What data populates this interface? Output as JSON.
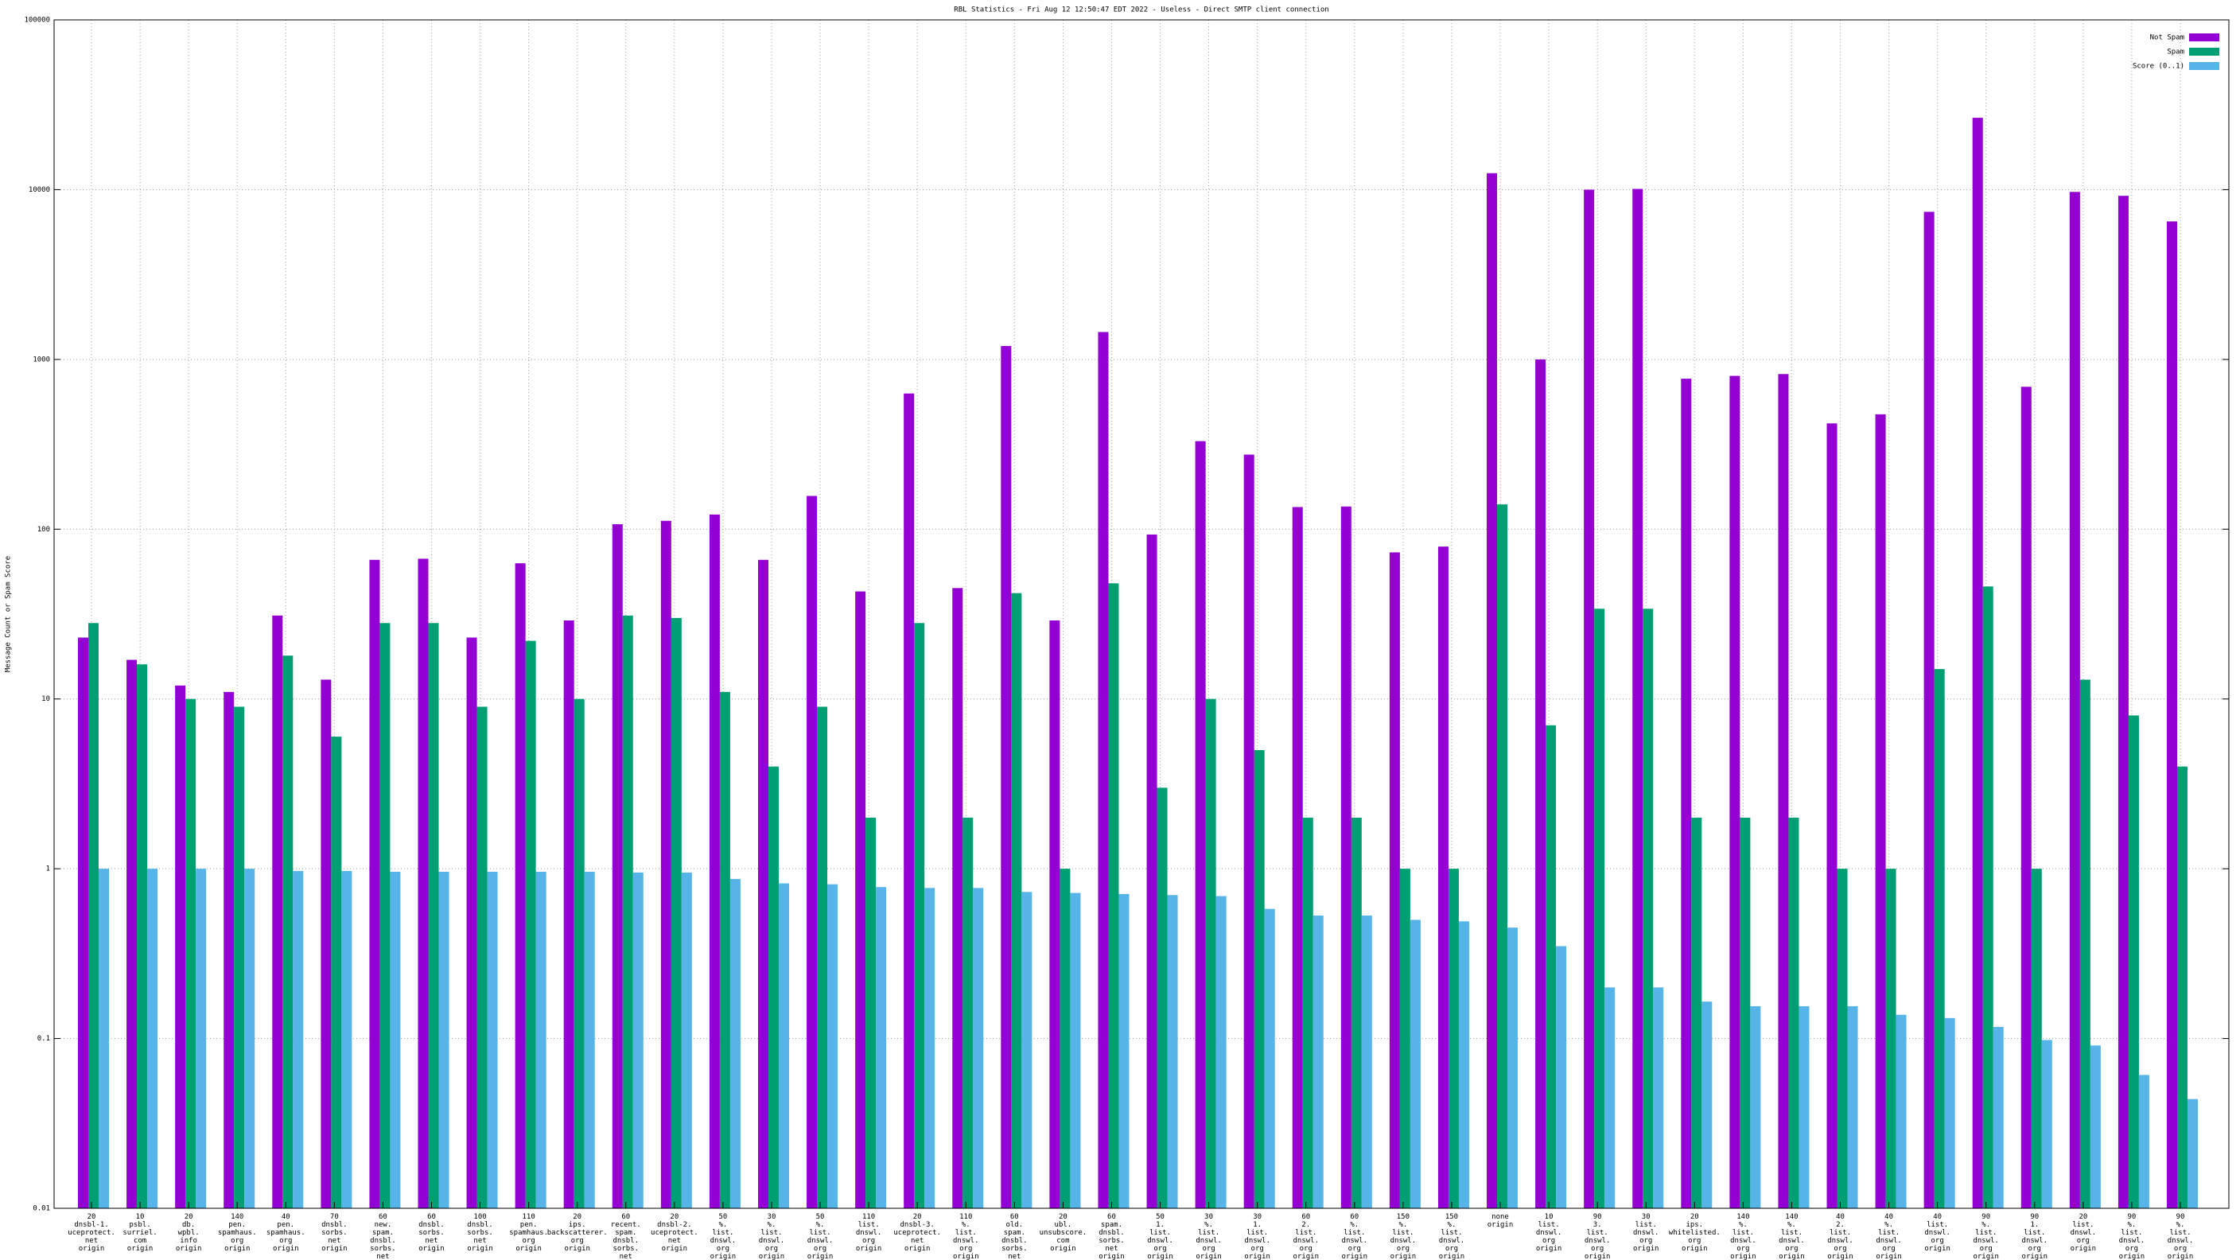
{
  "chart_data": {
    "type": "bar",
    "title": "RBL Statistics - Fri Aug 12 12:50:47 EDT 2022 - Useless - Direct SMTP client connection",
    "y_label": "Message Count or Spam Score",
    "log_scale": true,
    "grid": true,
    "legend": "top-right",
    "ylim": [
      0.01,
      100000
    ],
    "yticks": [
      0.01,
      0.1,
      1,
      10,
      100,
      1000,
      10000,
      100000
    ],
    "categories": [
      [
        "20",
        "dnsbl-1.",
        "uceprotect.",
        "net",
        "origin"
      ],
      [
        "10",
        "psbl.",
        "surriel.",
        "com",
        "origin"
      ],
      [
        "20",
        "db.",
        "wpbl.",
        "info",
        "origin"
      ],
      [
        "140",
        "pen.",
        "spamhaus.",
        "org",
        "origin"
      ],
      [
        "40",
        "pen.",
        "spamhaus.",
        "org",
        "origin"
      ],
      [
        "70",
        "dnsbl.",
        "sorbs.",
        "net",
        "origin"
      ],
      [
        "60",
        "new.",
        "spam.",
        "dnsbl.",
        "sorbs.",
        "net",
        "origin"
      ],
      [
        "60",
        "dnsbl.",
        "sorbs.",
        "net",
        "origin"
      ],
      [
        "100",
        "dnsbl.",
        "sorbs.",
        "net",
        "origin"
      ],
      [
        "110",
        "pen.",
        "spamhaus.",
        "org",
        "origin"
      ],
      [
        "20",
        "ips.",
        "backscatterer.",
        "org",
        "origin"
      ],
      [
        "60",
        "recent.",
        "spam.",
        "dnsbl.",
        "sorbs.",
        "net",
        "origin"
      ],
      [
        "20",
        "dnsbl-2.",
        "uceprotect.",
        "net",
        "origin"
      ],
      [
        "50",
        "%.",
        "list.",
        "dnswl.",
        "org",
        "origin"
      ],
      [
        "30",
        "%.",
        "list.",
        "dnswl.",
        "org",
        "origin"
      ],
      [
        "50",
        "%.",
        "list.",
        "dnswl.",
        "org",
        "origin"
      ],
      [
        "110",
        "list.",
        "dnswl.",
        "org",
        "origin"
      ],
      [
        "20",
        "dnsbl-3.",
        "uceprotect.",
        "net",
        "origin"
      ],
      [
        "110",
        "%.",
        "list.",
        "dnswl.",
        "org",
        "origin"
      ],
      [
        "60",
        "old.",
        "spam.",
        "dnsbl.",
        "sorbs.",
        "net",
        "origin"
      ],
      [
        "20",
        "ubl.",
        "unsubscore.",
        "com",
        "origin"
      ],
      [
        "60",
        "spam.",
        "dnsbl.",
        "sorbs.",
        "net",
        "origin"
      ],
      [
        "50",
        "1.",
        "list.",
        "dnswl.",
        "org",
        "origin"
      ],
      [
        "30",
        "%.",
        "list.",
        "dnswl.",
        "org",
        "origin"
      ],
      [
        "30",
        "1.",
        "list.",
        "dnswl.",
        "org",
        "origin"
      ],
      [
        "60",
        "2.",
        "list.",
        "dnswl.",
        "org",
        "origin"
      ],
      [
        "60",
        "%.",
        "list.",
        "dnswl.",
        "org",
        "origin"
      ],
      [
        "150",
        "%.",
        "list.",
        "dnswl.",
        "org",
        "origin"
      ],
      [
        "150",
        "%.",
        "list.",
        "dnswl.",
        "org",
        "origin"
      ],
      [
        "none",
        "origin"
      ],
      [
        "10",
        "list.",
        "dnswl.",
        "org",
        "origin"
      ],
      [
        "90",
        "3.",
        "list.",
        "dnswl.",
        "org",
        "origin"
      ],
      [
        "30",
        "list.",
        "dnswl.",
        "org",
        "origin"
      ],
      [
        "20",
        "ips.",
        "whitelisted.",
        "org",
        "origin"
      ],
      [
        "140",
        "%.",
        "list.",
        "dnswl.",
        "org",
        "origin"
      ],
      [
        "140",
        "%.",
        "list.",
        "dnswl.",
        "org",
        "origin"
      ],
      [
        "40",
        "2.",
        "list.",
        "dnswl.",
        "org",
        "origin"
      ],
      [
        "40",
        "%.",
        "list.",
        "dnswl.",
        "org",
        "origin"
      ],
      [
        "40",
        "list.",
        "dnswl.",
        "org",
        "origin"
      ],
      [
        "90",
        "%.",
        "list.",
        "dnswl.",
        "org",
        "origin"
      ],
      [
        "90",
        "1.",
        "list.",
        "dnswl.",
        "org",
        "origin"
      ],
      [
        "20",
        "list.",
        "dnswl.",
        "org",
        "origin"
      ],
      [
        "90",
        "%.",
        "list.",
        "dnswl.",
        "org",
        "origin"
      ],
      [
        "90",
        "%.",
        "list.",
        "dnswl.",
        "org",
        "origin"
      ]
    ],
    "series": [
      {
        "name": "Not Spam",
        "color": "#9400d3",
        "values": [
          23,
          17,
          12,
          11,
          31,
          13,
          66,
          67,
          23,
          63,
          29,
          107,
          112,
          122,
          66,
          157,
          43,
          630,
          45,
          1200,
          29,
          1450,
          93,
          330,
          275,
          135,
          136,
          73,
          79,
          12500,
          1000,
          10000,
          10100,
          770,
          800,
          820,
          420,
          475,
          7400,
          26500,
          690,
          9700,
          9200,
          6500
        ]
      },
      {
        "name": "Spam",
        "color": "#009e73",
        "values": [
          28,
          16,
          10,
          9,
          18,
          6,
          28,
          28,
          9,
          22,
          10,
          31,
          30,
          11,
          4,
          9,
          2,
          28,
          2,
          42,
          1,
          48,
          3,
          10,
          5,
          2,
          2,
          1,
          1,
          140,
          7,
          34,
          34,
          2,
          2,
          2,
          1,
          1,
          15,
          46,
          1,
          13,
          8,
          4
        ]
      },
      {
        "name": "Score (0..1)",
        "color": "#56b4e9",
        "values": [
          1,
          1,
          1,
          1,
          0.97,
          0.97,
          0.96,
          0.96,
          0.96,
          0.96,
          0.96,
          0.95,
          0.95,
          0.87,
          0.82,
          0.81,
          0.78,
          0.77,
          0.77,
          0.73,
          0.72,
          0.71,
          0.7,
          0.69,
          0.58,
          0.53,
          0.53,
          0.5,
          0.49,
          0.45,
          0.35,
          0.2,
          0.2,
          0.165,
          0.155,
          0.155,
          0.155,
          0.138,
          0.132,
          0.117,
          0.098,
          0.091,
          0.061,
          0.044
        ]
      }
    ]
  }
}
